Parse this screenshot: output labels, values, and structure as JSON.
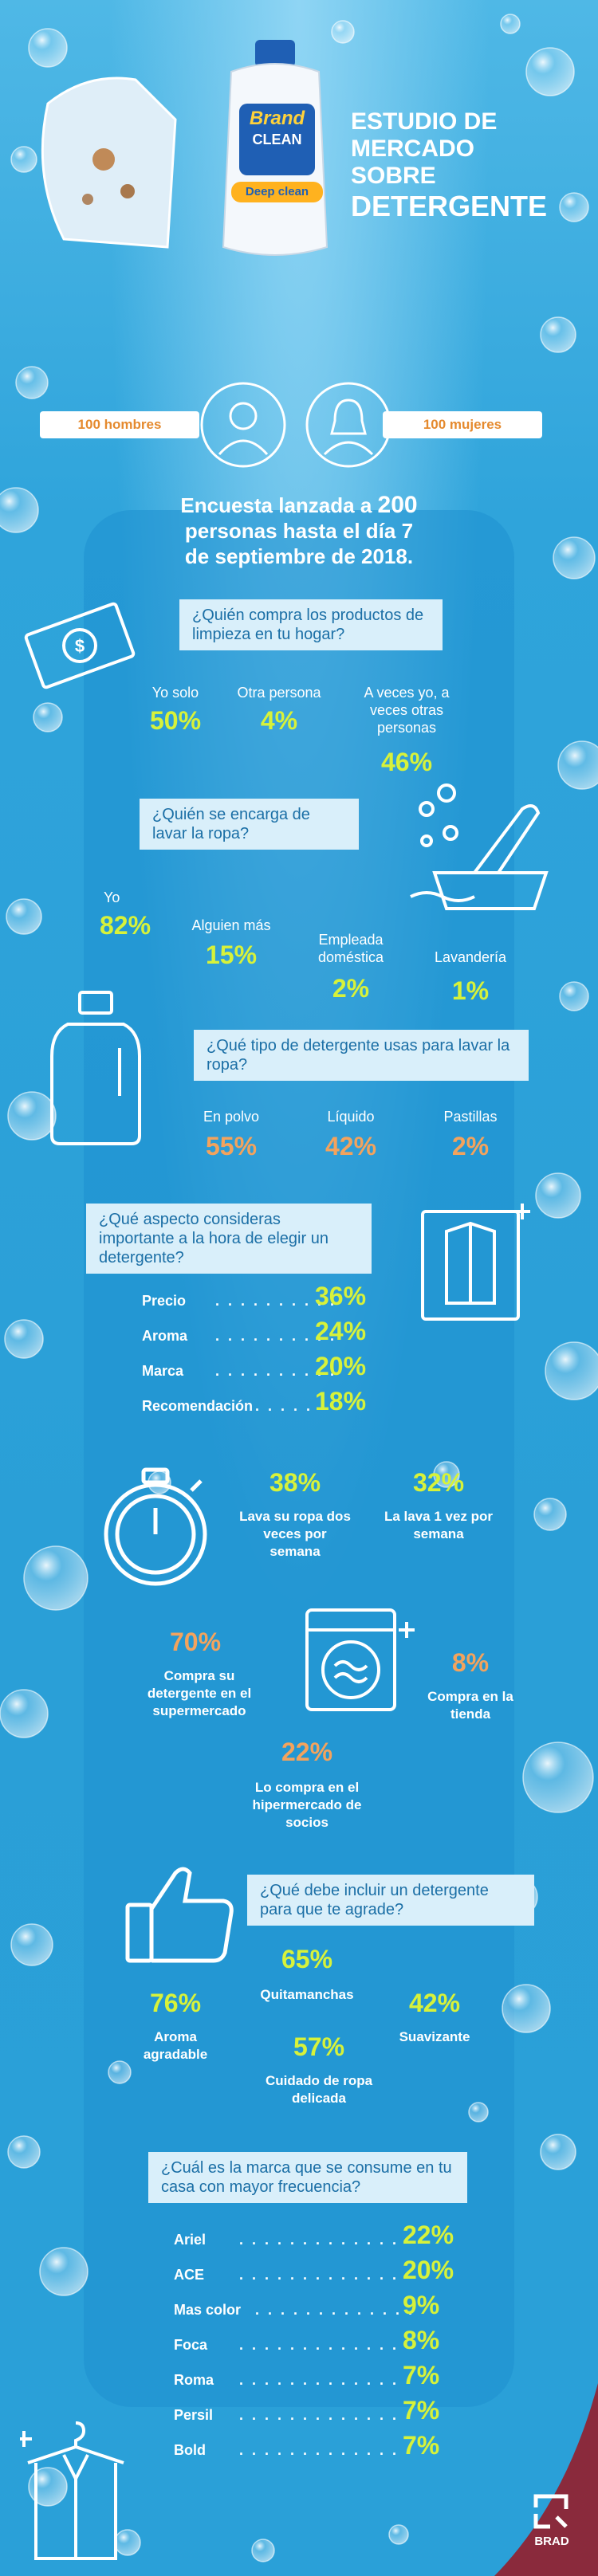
{
  "header": {
    "title_lines": [
      "ESTUDIO DE",
      "MERCADO",
      "SOBRE"
    ],
    "title_emph": "DETERGENTE",
    "product": {
      "brand_top": "Brand",
      "brand_bottom": "CLEAN",
      "sub": "Deep clean"
    }
  },
  "panel": {
    "men": "100 hombres",
    "women": "100 mujeres"
  },
  "survey_intro": {
    "line1_pre": "Encuesta lanzada a ",
    "line1_num": "200",
    "line2": "personas hasta el día 7",
    "line3": "de septiembre de 2018."
  },
  "q1": {
    "question": "¿Quién compra los productos de limpieza en tu hogar?",
    "answers": [
      {
        "label": "Yo solo",
        "pct": "50%"
      },
      {
        "label": "Otra persona",
        "pct": "4%"
      },
      {
        "label": "A veces yo, a veces otras personas",
        "pct": "46%"
      }
    ]
  },
  "q2": {
    "question": "¿Quién se encarga de lavar la ropa?",
    "answers": [
      {
        "label": "Yo",
        "pct": "82%"
      },
      {
        "label": "Alguien más",
        "pct": "15%"
      },
      {
        "label": "Empleada doméstica",
        "pct": "2%"
      },
      {
        "label": "Lavandería",
        "pct": "1%"
      }
    ]
  },
  "q3": {
    "question": "¿Qué tipo de detergente usas para lavar la ropa?",
    "answers": [
      {
        "label": "En polvo",
        "pct": "55%"
      },
      {
        "label": "Líquido",
        "pct": "42%"
      },
      {
        "label": "Pastillas",
        "pct": "2%"
      }
    ]
  },
  "q4": {
    "question": "¿Qué aspecto consideras importante a la hora de elegir un detergente?",
    "rows": [
      {
        "label": "Precio",
        "pct": "36%"
      },
      {
        "label": "Aroma",
        "pct": "24%"
      },
      {
        "label": "Marca",
        "pct": "20%"
      },
      {
        "label": "Recomendación",
        "pct": "18%"
      }
    ]
  },
  "frequency": [
    {
      "pct": "38%",
      "label": "Lava su ropa dos veces por semana"
    },
    {
      "pct": "32%",
      "label": "La lava 1 vez por semana"
    }
  ],
  "where": [
    {
      "pct": "70%",
      "label": "Compra su detergente en el supermercado"
    },
    {
      "pct": "8%",
      "label": "Compra en la tienda"
    },
    {
      "pct": "22%",
      "label": "Lo compra en el hipermercado de socios"
    }
  ],
  "q5": {
    "question": "¿Qué debe incluir un detergente para que te agrade?",
    "answers": [
      {
        "label": "Quitamanchas",
        "pct": "65%"
      },
      {
        "label": "Aroma agradable",
        "pct": "76%"
      },
      {
        "label": "Suavizante",
        "pct": "42%"
      },
      {
        "label": "Cuidado de ropa delicada",
        "pct": "57%"
      }
    ]
  },
  "q6": {
    "question": "¿Cuál es la marca que se consume en tu casa con mayor frecuencia?",
    "rows": [
      {
        "label": "Ariel",
        "pct": "22%"
      },
      {
        "label": "ACE",
        "pct": "20%"
      },
      {
        "label": "Mas color",
        "pct": "9%"
      },
      {
        "label": "Foca",
        "pct": "8%"
      },
      {
        "label": "Roma",
        "pct": "7%"
      },
      {
        "label": "Persil",
        "pct": "7%"
      },
      {
        "label": "Bold",
        "pct": "7%"
      }
    ]
  },
  "footer": {
    "logo_text": "BRAD"
  },
  "colors": {
    "accent_lime": "#d7f23a",
    "accent_orange": "#f3a35d",
    "corner": "#8a2a3c",
    "box": "#d9effa"
  }
}
